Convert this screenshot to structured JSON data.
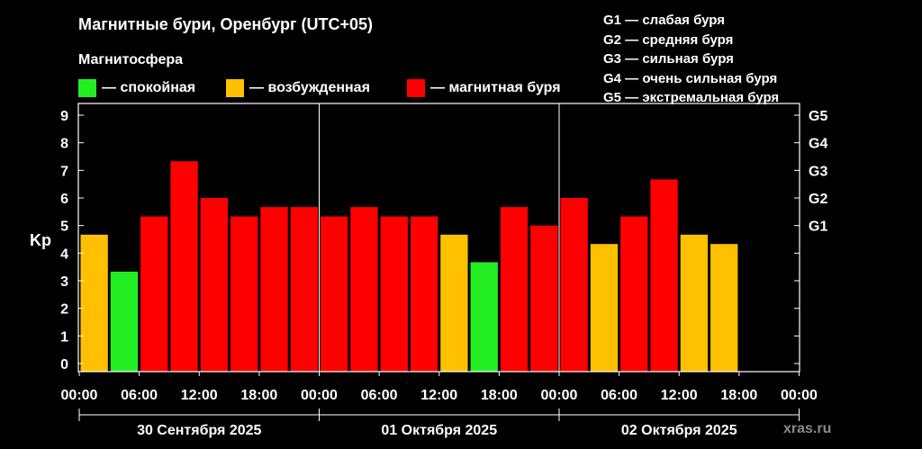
{
  "title": "Магнитные бури, Оренбург (UTC+05)",
  "legend": {
    "heading": "Магнитосфера",
    "items": [
      {
        "label": "— спокойная",
        "color": "#22ee22"
      },
      {
        "label": "— возбужденная",
        "color": "#ffc000"
      },
      {
        "label": "— магнитная буря",
        "color": "#ff0000"
      }
    ]
  },
  "g_scale": [
    "G1 — слабая буря",
    "G2 — средняя буря",
    "G3 — сильная буря",
    "G4 — очень сильная буря",
    "G5 — экстремальная буря"
  ],
  "watermark": "xras.ru",
  "chart_data": {
    "type": "bar",
    "ylabel": "Kp",
    "ylim": [
      0,
      9
    ],
    "y_ticks": [
      "0",
      "1",
      "2",
      "3",
      "4",
      "5",
      "6",
      "7",
      "8",
      "9"
    ],
    "right_ticks": [
      {
        "value": 5,
        "label": "G1"
      },
      {
        "value": 6,
        "label": "G2"
      },
      {
        "value": 7,
        "label": "G3"
      },
      {
        "value": 8,
        "label": "G4"
      },
      {
        "value": 9,
        "label": "G5"
      }
    ],
    "x_tick_labels": [
      "00:00",
      "06:00",
      "12:00",
      "18:00",
      "00:00",
      "06:00",
      "12:00",
      "18:00",
      "00:00",
      "06:00",
      "12:00",
      "18:00",
      "00:00"
    ],
    "days": [
      "30 Сентября 2025",
      "01 Октября 2025",
      "02 Октября 2025"
    ],
    "bar_interval_hours": 3,
    "values": [
      4.67,
      3.33,
      5.33,
      7.33,
      6.0,
      5.33,
      5.67,
      5.67,
      5.33,
      5.67,
      5.33,
      5.33,
      4.67,
      3.67,
      5.67,
      5.0,
      6.0,
      4.33,
      5.33,
      6.67,
      4.67,
      4.33
    ],
    "colors": {
      "quiet": "#22ee22",
      "active": "#ffc000",
      "storm": "#ff0000"
    }
  }
}
